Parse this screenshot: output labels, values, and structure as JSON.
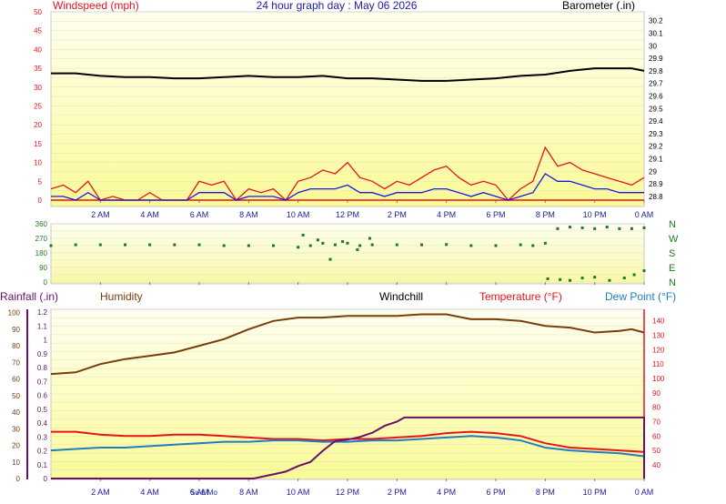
{
  "title": "24 hour graph day : May 06 2026",
  "colors": {
    "red": "#e8141c",
    "blue": "#1a18e6",
    "black": "#000000",
    "green": "#1f7a1f",
    "brown": "#7a3d0a",
    "purple": "#6b0f6b",
    "teal": "#1f7fbf"
  },
  "time_labels": [
    "2 AM",
    "4 AM",
    "6 AM",
    "8 AM",
    "10 AM",
    "12 PM",
    "2 PM",
    "4 PM",
    "6 PM",
    "8 PM",
    "10 PM",
    "0 AM"
  ],
  "bottom_overlay_labels": [
    "Su 6 Mo"
  ],
  "chart_data": [
    {
      "type": "line",
      "name": "wind-barometer",
      "left_axis_title": "Windspeed (mph)",
      "right_axis_title": "Barometer (.in)",
      "left_ticks": [
        "0",
        "5",
        "10",
        "15",
        "20",
        "25",
        "30",
        "35",
        "40",
        "45",
        "50"
      ],
      "right_ticks": [
        "28.8",
        "28.9",
        "29",
        "29.1",
        "29.2",
        "29.3",
        "29.4",
        "29.5",
        "29.6",
        "29.7",
        "29.8",
        "29.9",
        "30",
        "30.1",
        "30.2"
      ],
      "ylim_left": [
        0,
        50
      ],
      "ylim_right": [
        28.77,
        30.27
      ],
      "xlim": [
        0,
        24
      ],
      "series": [
        {
          "color": "#e8141c",
          "x": [
            0,
            0.5,
            1,
            1.5,
            2,
            2.5,
            3,
            3.5,
            4,
            4.5,
            5,
            5.5,
            6,
            6.5,
            7,
            7.5,
            8,
            8.5,
            9,
            9.5,
            10,
            10.5,
            11,
            11.5,
            12,
            12.5,
            13,
            13.5,
            14,
            14.5,
            15,
            15.5,
            16,
            16.5,
            17,
            17.5,
            18,
            18.5,
            19,
            19.5,
            20,
            20.5,
            21,
            21.5,
            22,
            22.5,
            23,
            23.5,
            24
          ],
          "y": [
            3,
            4,
            2,
            5,
            0,
            1,
            0,
            0,
            2,
            0,
            0,
            0,
            5,
            4,
            5,
            0,
            3,
            2,
            3,
            0,
            5,
            6,
            8,
            7,
            10,
            6,
            5,
            3,
            5,
            4,
            6,
            8,
            9,
            6,
            4,
            5,
            4,
            0,
            3,
            5,
            14,
            9,
            10,
            8,
            7,
            6,
            5,
            4,
            6
          ]
        },
        {
          "color": "#1a18e6",
          "x": [
            0,
            0.5,
            1,
            1.5,
            2,
            2.5,
            3,
            3.5,
            4,
            4.5,
            5,
            5.5,
            6,
            6.5,
            7,
            7.5,
            8,
            8.5,
            9,
            9.5,
            10,
            10.5,
            11,
            11.5,
            12,
            12.5,
            13,
            13.5,
            14,
            14.5,
            15,
            15.5,
            16,
            16.5,
            17,
            17.5,
            18,
            18.5,
            19,
            19.5,
            20,
            20.5,
            21,
            21.5,
            22,
            22.5,
            23,
            23.5,
            24
          ],
          "y": [
            1,
            1,
            0,
            2,
            0,
            0,
            0,
            0,
            0,
            0,
            0,
            0,
            2,
            2,
            2,
            0,
            1,
            1,
            1,
            0,
            2,
            3,
            3,
            3,
            4,
            2,
            2,
            1,
            2,
            2,
            2,
            3,
            3,
            2,
            1,
            2,
            1,
            0,
            1,
            2,
            7,
            5,
            5,
            4,
            3,
            3,
            2,
            2,
            2
          ]
        },
        {
          "color": "#000000",
          "x": [
            0,
            1,
            2,
            3,
            4,
            5,
            6,
            7,
            8,
            9,
            10,
            11,
            12,
            13,
            14,
            15,
            16,
            17,
            18,
            19,
            20,
            21,
            22,
            23,
            23.5,
            24
          ],
          "y": [
            29.78,
            29.78,
            29.76,
            29.75,
            29.75,
            29.74,
            29.74,
            29.75,
            29.76,
            29.75,
            29.75,
            29.76,
            29.74,
            29.74,
            29.73,
            29.72,
            29.72,
            29.73,
            29.74,
            29.76,
            29.77,
            29.8,
            29.82,
            29.82,
            29.82,
            29.8
          ]
        }
      ]
    },
    {
      "type": "scatter",
      "name": "wind-direction",
      "left_ticks": [
        "0",
        "90",
        "180",
        "270",
        "360"
      ],
      "right_ticks": [
        "N",
        "E",
        "S",
        "W",
        "N"
      ],
      "ylim": [
        0,
        360
      ],
      "xlim": [
        0,
        24
      ],
      "series": [
        {
          "color": "#1f7a1f",
          "x": [
            0,
            1,
            2,
            3,
            4,
            5,
            6,
            7,
            8,
            9,
            10,
            10.5,
            11,
            11.5,
            12,
            12.5,
            13,
            14,
            15,
            16,
            17,
            18,
            19,
            19.5,
            20,
            20.5,
            21,
            21.5,
            22,
            22.5,
            23,
            23.5,
            24
          ],
          "y": [
            225,
            230,
            230,
            230,
            230,
            230,
            230,
            225,
            225,
            225,
            215,
            225,
            240,
            230,
            240,
            225,
            230,
            230,
            230,
            232,
            225,
            225,
            230,
            225,
            240,
            330,
            340,
            335,
            330,
            340,
            330,
            330,
            335
          ]
        },
        {
          "color": "#1f7a1f",
          "x": [
            10.2,
            10.8,
            11.3,
            11.8,
            12.4,
            12.9,
            20.1,
            20.6,
            21.0,
            21.5,
            22.0,
            22.6,
            23.2,
            23.6,
            24.0
          ],
          "y": [
            290,
            260,
            140,
            250,
            200,
            270,
            20,
            15,
            10,
            25,
            30,
            10,
            25,
            45,
            70
          ]
        }
      ]
    },
    {
      "type": "line",
      "name": "rain-humidity-temperature",
      "left_axis_title": "Rainfall (.in)",
      "humidity_title": "Humidity",
      "windchill_title": "Windchill",
      "temperature_title": "Temperature (°F)",
      "dewpoint_title": "Dew Point (°F)",
      "humidity_ticks": [
        "0",
        "10",
        "20",
        "30",
        "40",
        "50",
        "60",
        "70",
        "80",
        "90",
        "100"
      ],
      "rain_ticks": [
        "0",
        "0.1",
        "0.2",
        "0.3",
        "0.4",
        "0.5",
        "0.6",
        "0.7",
        "0.8",
        "0.9",
        "1",
        "1.1",
        "1.2"
      ],
      "temp_ticks": [
        "40",
        "50",
        "60",
        "70",
        "80",
        "90",
        "100",
        "110",
        "120",
        "130",
        "140"
      ],
      "ylim_humidity": [
        0,
        102
      ],
      "ylim_rain": [
        0,
        1.22
      ],
      "ylim_temp": [
        30.5,
        148
      ],
      "xlim": [
        0,
        24
      ],
      "series": [
        {
          "color": "#7a3d0a",
          "axis": "humidity",
          "x": [
            0,
            1,
            2,
            3,
            4,
            5,
            6,
            7,
            8,
            9,
            10,
            11,
            12,
            13,
            14,
            15,
            16,
            17,
            18,
            19,
            20,
            21,
            22,
            23,
            23.5,
            24
          ],
          "y": [
            63,
            64,
            69,
            72,
            74,
            76,
            80,
            84,
            90,
            95,
            97,
            97,
            98,
            98,
            98,
            99,
            99,
            96,
            96,
            95,
            92,
            91,
            88,
            89,
            90,
            88
          ]
        },
        {
          "color": "#e8141c",
          "axis": "temp",
          "x": [
            0,
            1,
            2,
            3,
            4,
            5,
            6,
            7,
            8,
            9,
            10,
            11,
            12,
            13,
            14,
            15,
            16,
            17,
            18,
            19,
            20,
            21,
            22,
            23,
            24
          ],
          "y": [
            63,
            63,
            61,
            60,
            60,
            61,
            61,
            60,
            59,
            58,
            58,
            57,
            58,
            58,
            59,
            60,
            62,
            63,
            62,
            60,
            55,
            52,
            51,
            50,
            49
          ]
        },
        {
          "color": "#1f7fbf",
          "axis": "temp",
          "x": [
            0,
            1,
            2,
            3,
            4,
            5,
            6,
            7,
            8,
            9,
            10,
            11,
            12,
            13,
            14,
            15,
            16,
            17,
            18,
            19,
            20,
            21,
            22,
            23,
            24
          ],
          "y": [
            50,
            51,
            52,
            52,
            53,
            54,
            55,
            56,
            56,
            57,
            57,
            56,
            56,
            57,
            57,
            58,
            59,
            60,
            59,
            57,
            52,
            50,
            49,
            48,
            46
          ]
        },
        {
          "color": "#6b0f6b",
          "axis": "rain",
          "x": [
            0,
            8.2,
            9.0,
            9.5,
            10,
            10.5,
            11,
            11.5,
            12,
            12.5,
            13,
            13.5,
            14,
            14.3,
            24,
            24
          ],
          "y": [
            0,
            0,
            0.03,
            0.05,
            0.09,
            0.12,
            0.2,
            0.27,
            0.28,
            0.3,
            0.33,
            0.38,
            0.41,
            0.44,
            0.44,
            0
          ]
        }
      ]
    }
  ]
}
